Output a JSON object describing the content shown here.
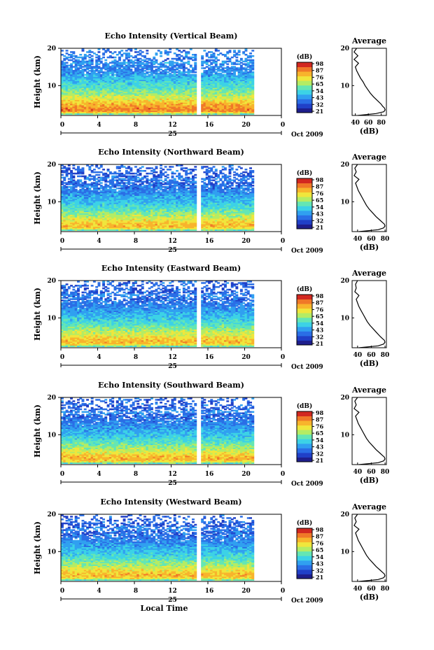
{
  "colors": {
    "scale": [
      "#1e1e8c",
      "#2040c8",
      "#2a6ee6",
      "#30a0f0",
      "#3cd2e6",
      "#64e6b4",
      "#b4ec64",
      "#f0e63c",
      "#f8b42c",
      "#f07828",
      "#d22820"
    ],
    "colorbar_frame": "#000000",
    "gap": "#ffffff"
  },
  "chart_data": [
    {
      "type": "heatmap",
      "title": "Echo Intensity (Vertical Beam)",
      "ylabel": "Height (km)",
      "y_ticks": [
        "20",
        "10"
      ],
      "x_ticks": [
        "0",
        "4",
        "8",
        "12",
        "16",
        "20",
        "0"
      ],
      "x_range": [
        0,
        24
      ],
      "y_range": [
        2,
        20
      ],
      "data_end_time": 21,
      "data_gap_time": 15,
      "date_day": "25",
      "date_month_year": "Oct  2009",
      "colorbar": {
        "unit": "(dB)",
        "labels": [
          "98",
          "87",
          "76",
          "65",
          "54",
          "43",
          "32",
          "21"
        ],
        "range": [
          21,
          98
        ]
      },
      "profile": {
        "title": "Average",
        "xlabel": "(dB)",
        "x_ticks": [
          "40",
          "60",
          "80"
        ],
        "x_range": [
          35,
          88
        ],
        "y_ticks": [
          "20",
          "10"
        ],
        "height_km": [
          2.0,
          2.5,
          3.0,
          3.5,
          4.0,
          4.5,
          5.0,
          6.0,
          7.0,
          8.0,
          9.0,
          10.0,
          11.0,
          12.0,
          13.0,
          14.0,
          15.0,
          16.0,
          17.0,
          18.0,
          19.0,
          20.0
        ],
        "values_db": [
          44,
          72,
          84,
          86,
          85,
          82,
          80,
          74,
          68,
          63,
          59,
          55,
          52,
          48,
          45,
          42,
          40,
          45,
          38,
          44,
          38,
          42
        ]
      }
    },
    {
      "type": "heatmap",
      "title": "Echo Intensity (Northward Beam)",
      "ylabel": "Height (km)",
      "y_ticks": [
        "20",
        "10"
      ],
      "x_ticks": [
        "0",
        "4",
        "8",
        "12",
        "16",
        "20",
        "0"
      ],
      "x_range": [
        0,
        24
      ],
      "y_range": [
        2,
        20
      ],
      "data_end_time": 21,
      "data_gap_time": 15,
      "date_day": "25",
      "date_month_year": "Oct  2009",
      "colorbar": {
        "unit": "(dB)",
        "labels": [
          "98",
          "87",
          "76",
          "65",
          "54",
          "43",
          "32",
          "21"
        ],
        "range": [
          21,
          98
        ]
      },
      "profile": {
        "title": "Average",
        "xlabel": "(dB)",
        "x_ticks": [
          "40",
          "60",
          "80"
        ],
        "x_range": [
          32,
          82
        ],
        "y_ticks": [
          "20",
          "10"
        ],
        "height_km": [
          2.0,
          2.5,
          3.0,
          3.5,
          4.0,
          4.5,
          5.0,
          6.0,
          7.0,
          8.0,
          9.0,
          10.0,
          11.0,
          12.0,
          13.0,
          14.0,
          15.0,
          16.0,
          17.0,
          18.0,
          19.0,
          20.0
        ],
        "values_db": [
          42,
          70,
          78,
          80,
          79,
          76,
          73,
          67,
          62,
          57,
          53,
          50,
          47,
          44,
          41,
          39,
          37,
          42,
          35,
          38,
          36,
          40
        ]
      }
    },
    {
      "type": "heatmap",
      "title": "Echo Intensity (Eastward Beam)",
      "ylabel": "Height (km)",
      "y_ticks": [
        "20",
        "10"
      ],
      "x_ticks": [
        "0",
        "4",
        "8",
        "12",
        "16",
        "20",
        "0"
      ],
      "x_range": [
        0,
        24
      ],
      "y_range": [
        2,
        20
      ],
      "data_end_time": 21,
      "data_gap_time": 15,
      "date_day": "25",
      "date_month_year": "Oct  2009",
      "colorbar": {
        "unit": "(dB)",
        "labels": [
          "98",
          "87",
          "76",
          "65",
          "54",
          "43",
          "32",
          "21"
        ],
        "range": [
          21,
          98
        ]
      },
      "profile": {
        "title": "Average",
        "xlabel": "(dB)",
        "x_ticks": [
          "40",
          "60",
          "80"
        ],
        "x_range": [
          32,
          82
        ],
        "y_ticks": [
          "20",
          "10"
        ],
        "height_km": [
          2.0,
          2.5,
          3.0,
          3.5,
          4.0,
          4.5,
          5.0,
          6.0,
          7.0,
          8.0,
          9.0,
          10.0,
          11.0,
          12.0,
          13.0,
          14.0,
          15.0,
          16.0,
          17.0,
          18.0,
          19.0,
          20.0
        ],
        "values_db": [
          42,
          70,
          78,
          80,
          79,
          76,
          73,
          68,
          63,
          58,
          54,
          51,
          48,
          45,
          42,
          40,
          38,
          42,
          36,
          38,
          37,
          40
        ]
      }
    },
    {
      "type": "heatmap",
      "title": "Echo Intensity (Southward Beam)",
      "ylabel": "Height (km)",
      "y_ticks": [
        "20",
        "10"
      ],
      "x_ticks": [
        "0",
        "4",
        "8",
        "12",
        "16",
        "20",
        "0"
      ],
      "x_range": [
        0,
        24
      ],
      "y_range": [
        2,
        20
      ],
      "data_end_time": 21,
      "data_gap_time": 15,
      "date_day": "25",
      "date_month_year": "Oct  2009",
      "colorbar": {
        "unit": "(dB)",
        "labels": [
          "98",
          "87",
          "76",
          "65",
          "54",
          "43",
          "32",
          "21"
        ],
        "range": [
          21,
          98
        ]
      },
      "profile": {
        "title": "Average",
        "xlabel": "(dB)",
        "x_ticks": [
          "40",
          "60",
          "80"
        ],
        "x_range": [
          32,
          82
        ],
        "y_ticks": [
          "20",
          "10"
        ],
        "height_km": [
          2.0,
          2.5,
          3.0,
          3.5,
          4.0,
          4.5,
          5.0,
          6.0,
          7.0,
          8.0,
          9.0,
          10.0,
          11.0,
          12.0,
          13.0,
          14.0,
          15.0,
          16.0,
          17.0,
          18.0,
          19.0,
          20.0
        ],
        "values_db": [
          42,
          70,
          78,
          80,
          79,
          76,
          73,
          67,
          62,
          57,
          53,
          50,
          47,
          44,
          41,
          39,
          37,
          42,
          35,
          38,
          36,
          40
        ]
      }
    },
    {
      "type": "heatmap",
      "title": "Echo Intensity (Westward Beam)",
      "ylabel": "Height (km)",
      "xlabel": "Local Time",
      "y_ticks": [
        "20",
        "10"
      ],
      "x_ticks": [
        "0",
        "4",
        "8",
        "12",
        "16",
        "20",
        "0"
      ],
      "x_range": [
        0,
        24
      ],
      "y_range": [
        2,
        20
      ],
      "data_end_time": 21,
      "data_gap_time": 15,
      "date_day": "25",
      "date_month_year": "Oct  2009",
      "colorbar": {
        "unit": "(dB)",
        "labels": [
          "98",
          "87",
          "76",
          "65",
          "54",
          "43",
          "32",
          "21"
        ],
        "range": [
          21,
          98
        ]
      },
      "profile": {
        "title": "Average",
        "xlabel": "(dB)",
        "x_ticks": [
          "40",
          "60",
          "80"
        ],
        "x_range": [
          32,
          82
        ],
        "y_ticks": [
          "20",
          "10"
        ],
        "height_km": [
          2.0,
          2.5,
          3.0,
          3.5,
          4.0,
          4.5,
          5.0,
          6.0,
          7.0,
          8.0,
          9.0,
          10.0,
          11.0,
          12.0,
          13.0,
          14.0,
          15.0,
          16.0,
          17.0,
          18.0,
          19.0,
          20.0
        ],
        "values_db": [
          42,
          70,
          78,
          80,
          79,
          76,
          73,
          67,
          62,
          57,
          53,
          50,
          47,
          44,
          41,
          39,
          37,
          42,
          35,
          38,
          36,
          40
        ]
      }
    }
  ]
}
